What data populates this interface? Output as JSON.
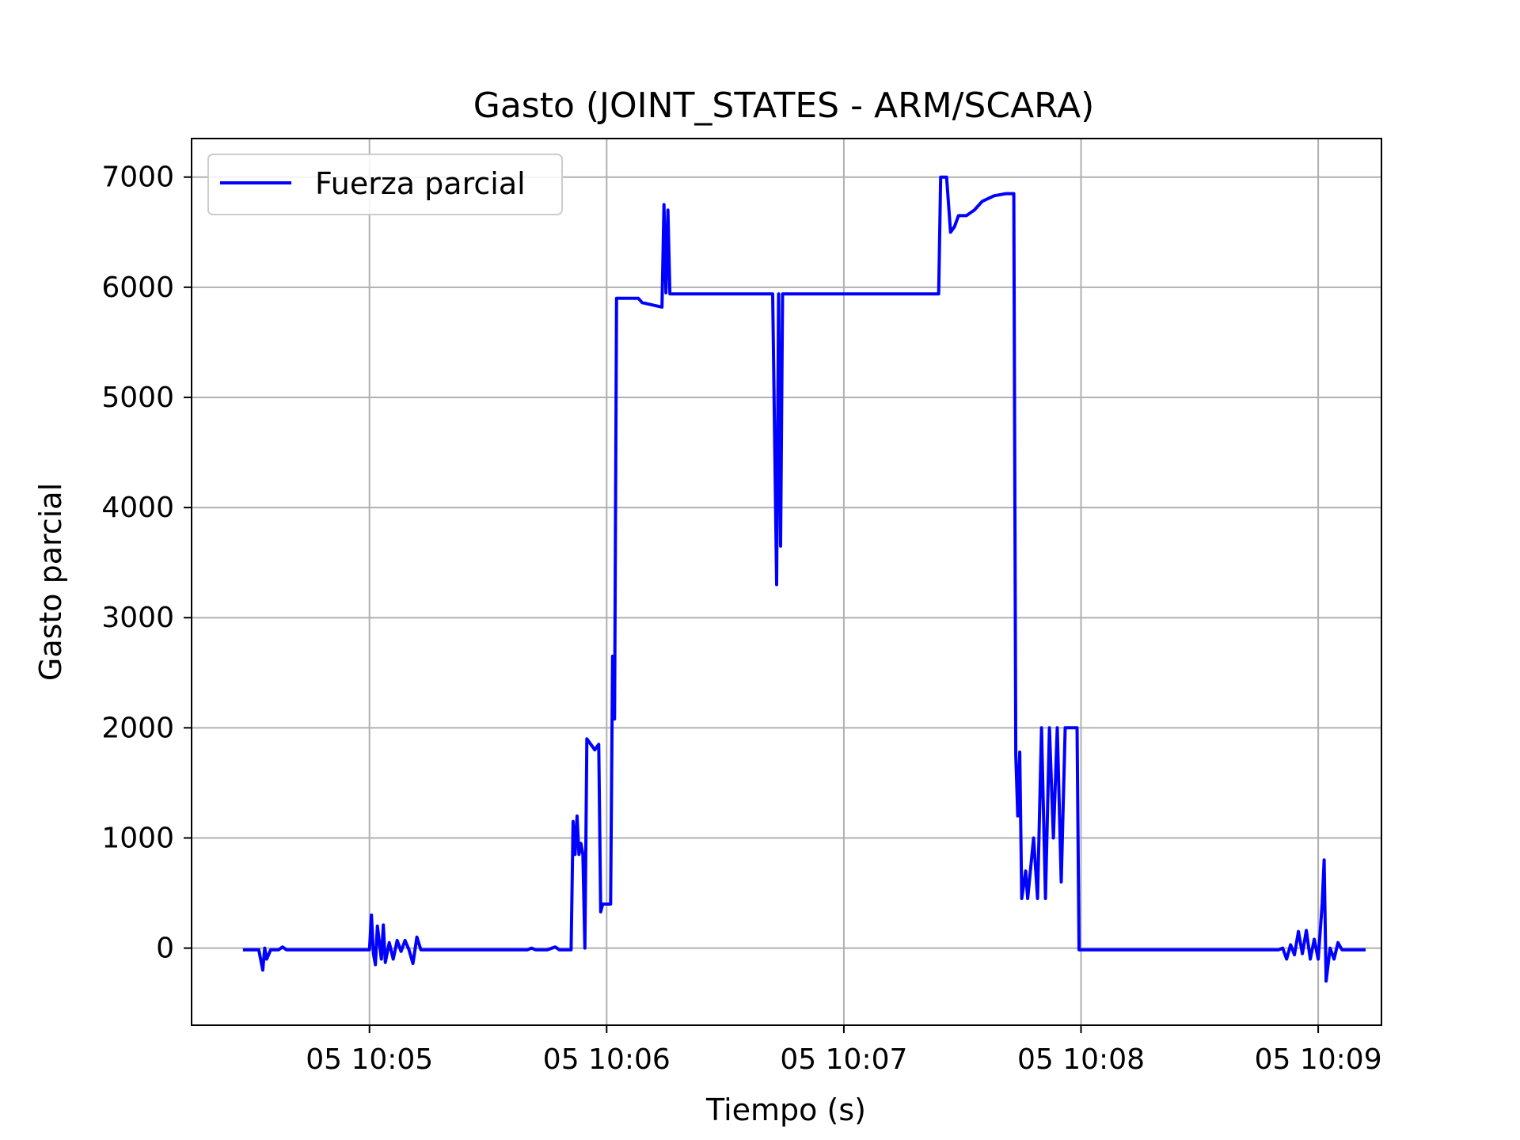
{
  "chart_data": {
    "type": "line",
    "title": "Gasto (JOINT_STATES - ARM/SCARA)",
    "xlabel": "Tiempo (s)",
    "ylabel": "Gasto parcial",
    "xlim": [
      "10:04:15",
      "10:09:16"
    ],
    "ylim": [
      -700,
      7350
    ],
    "grid": true,
    "legend_position": "top-left",
    "x_ticks": [
      {
        "time": "10:05:00",
        "label": "05 10:05"
      },
      {
        "time": "10:06:00",
        "label": "05 10:06"
      },
      {
        "time": "10:07:00",
        "label": "05 10:07"
      },
      {
        "time": "10:08:00",
        "label": "05 10:08"
      },
      {
        "time": "10:09:00",
        "label": "05 10:09"
      }
    ],
    "y_ticks": [
      0,
      1000,
      2000,
      3000,
      4000,
      5000,
      6000,
      7000
    ],
    "series": [
      {
        "name": "Fuerza parcial",
        "color": "#0000ff",
        "points": [
          [
            "10:04:28",
            -15
          ],
          [
            "10:04:32",
            -15
          ],
          [
            "10:04:33",
            -200
          ],
          [
            "10:04:33.5",
            0
          ],
          [
            "10:04:34",
            -100
          ],
          [
            "10:04:35",
            -15
          ],
          [
            "10:04:37",
            -15
          ],
          [
            "10:04:38",
            10
          ],
          [
            "10:04:39",
            -15
          ],
          [
            "10:05:00",
            -15
          ],
          [
            "10:05:00.5",
            300
          ],
          [
            "10:05:01",
            -50
          ],
          [
            "10:05:01.5",
            -150
          ],
          [
            "10:05:02",
            200
          ],
          [
            "10:05:03",
            -100
          ],
          [
            "10:05:03.5",
            210
          ],
          [
            "10:05:04",
            -130
          ],
          [
            "10:05:05",
            50
          ],
          [
            "10:05:06",
            -100
          ],
          [
            "10:05:07",
            70
          ],
          [
            "10:05:08",
            -30
          ],
          [
            "10:05:09",
            70
          ],
          [
            "10:05:10",
            -15
          ],
          [
            "10:05:11",
            -140
          ],
          [
            "10:05:12",
            100
          ],
          [
            "10:05:13",
            -15
          ],
          [
            "10:05:40",
            -15
          ],
          [
            "10:05:41",
            0
          ],
          [
            "10:05:42",
            -15
          ],
          [
            "10:05:45",
            -15
          ],
          [
            "10:05:47",
            10
          ],
          [
            "10:05:48",
            -15
          ],
          [
            "10:05:51",
            -15
          ],
          [
            "10:05:51.5",
            1150
          ],
          [
            "10:05:52",
            850
          ],
          [
            "10:05:52.5",
            1200
          ],
          [
            "10:05:53",
            850
          ],
          [
            "10:05:53.5",
            950
          ],
          [
            "10:05:54",
            850
          ],
          [
            "10:05:54.5",
            0
          ],
          [
            "10:05:55",
            1900
          ],
          [
            "10:05:56",
            1850
          ],
          [
            "10:05:57",
            1800
          ],
          [
            "10:05:58",
            1850
          ],
          [
            "10:05:58.5",
            330
          ],
          [
            "10:05:59",
            400
          ],
          [
            "10:06:01",
            400
          ],
          [
            "10:06:01.5",
            2650
          ],
          [
            "10:06:02",
            2080
          ],
          [
            "10:06:02.5",
            5900
          ],
          [
            "10:06:08",
            5900
          ],
          [
            "10:06:09",
            5860
          ],
          [
            "10:06:14",
            5820
          ],
          [
            "10:06:14.5",
            6750
          ],
          [
            "10:06:15",
            5950
          ],
          [
            "10:06:15.5",
            6700
          ],
          [
            "10:06:16",
            5940
          ],
          [
            "10:06:30",
            5940
          ],
          [
            "10:06:35",
            5940
          ],
          [
            "10:06:42",
            5940
          ],
          [
            "10:06:43",
            3300
          ],
          [
            "10:06:43.5",
            5940
          ],
          [
            "10:06:44",
            3650
          ],
          [
            "10:06:44.5",
            5940
          ],
          [
            "10:07:24",
            5940
          ],
          [
            "10:07:24.5",
            7000
          ],
          [
            "10:07:26",
            7000
          ],
          [
            "10:07:27",
            6500
          ],
          [
            "10:07:28",
            6550
          ],
          [
            "10:07:29",
            6650
          ],
          [
            "10:07:31",
            6650
          ],
          [
            "10:07:33",
            6700
          ],
          [
            "10:07:35",
            6780
          ],
          [
            "10:07:38",
            6830
          ],
          [
            "10:07:41",
            6850
          ],
          [
            "10:07:43",
            6850
          ],
          [
            "10:07:43.5",
            1750
          ],
          [
            "10:07:44",
            1200
          ],
          [
            "10:07:44.5",
            1780
          ],
          [
            "10:07:45",
            450
          ],
          [
            "10:07:46",
            700
          ],
          [
            "10:07:46.5",
            450
          ],
          [
            "10:07:48",
            1000
          ],
          [
            "10:07:49",
            450
          ],
          [
            "10:07:50",
            2000
          ],
          [
            "10:07:51",
            450
          ],
          [
            "10:07:52",
            2000
          ],
          [
            "10:07:53",
            1000
          ],
          [
            "10:07:54",
            2000
          ],
          [
            "10:07:55",
            600
          ],
          [
            "10:07:56",
            2000
          ],
          [
            "10:07:59",
            2000
          ],
          [
            "10:07:59.5",
            -15
          ],
          [
            "10:08:50",
            -15
          ],
          [
            "10:08:51",
            0
          ],
          [
            "10:08:52",
            -100
          ],
          [
            "10:08:53",
            30
          ],
          [
            "10:08:54",
            -60
          ],
          [
            "10:08:55",
            150
          ],
          [
            "10:08:56",
            -50
          ],
          [
            "10:08:57",
            160
          ],
          [
            "10:08:58",
            -100
          ],
          [
            "10:08:59",
            80
          ],
          [
            "10:09:00",
            -100
          ],
          [
            "10:09:01",
            400
          ],
          [
            "10:09:01.5",
            800
          ],
          [
            "10:09:02",
            -300
          ],
          [
            "10:09:03",
            0
          ],
          [
            "10:09:04",
            -100
          ],
          [
            "10:09:05",
            50
          ],
          [
            "10:09:06",
            -15
          ],
          [
            "10:09:12",
            -15
          ]
        ]
      }
    ]
  }
}
